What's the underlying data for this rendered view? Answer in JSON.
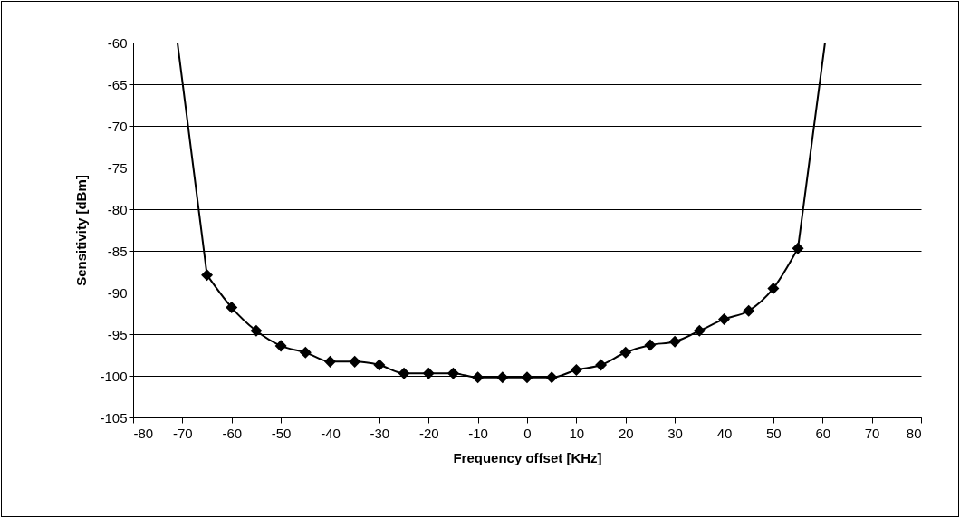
{
  "chart_data": {
    "type": "line",
    "xlabel": "Frequency offset [KHz]",
    "ylabel": "Sensitivity [dBm]",
    "xlim": [
      -80,
      80
    ],
    "xticks": [
      -80,
      -70,
      -60,
      -50,
      -40,
      -30,
      -20,
      -10,
      0,
      10,
      20,
      30,
      40,
      50,
      60,
      70,
      80
    ],
    "ylim": [
      -105,
      -60
    ],
    "yticks": [
      -105,
      -100,
      -95,
      -90,
      -85,
      -80,
      -75,
      -70,
      -65,
      -60
    ],
    "grid": "y",
    "line_style": "solid",
    "series": [
      {
        "color": "#000000",
        "marker": "diamond",
        "x": [
          -65,
          -60,
          -55,
          -50,
          -45,
          -40,
          -35,
          -30,
          -25,
          -20,
          -15,
          -10,
          -5,
          0,
          5,
          10,
          15,
          20,
          25,
          30,
          35,
          40,
          45,
          50,
          55
        ],
        "values": [
          -87.9,
          -91.8,
          -94.6,
          -96.4,
          -97.2,
          -98.3,
          -98.3,
          -98.7,
          -99.7,
          -99.7,
          -99.7,
          -100.2,
          -100.2,
          -100.2,
          -100.2,
          -99.3,
          -98.7,
          -97.2,
          -96.3,
          -95.9,
          -94.6,
          -93.2,
          -92.2,
          -89.5,
          -84.7
        ]
      },
      {
        "color": "#000000",
        "marker": "none",
        "x": [
          -71,
          -65
        ],
        "values": [
          -60,
          -87.9
        ]
      },
      {
        "color": "#000000",
        "marker": "none",
        "x": [
          55,
          60.5
        ],
        "values": [
          -84.7,
          -60
        ]
      }
    ]
  }
}
